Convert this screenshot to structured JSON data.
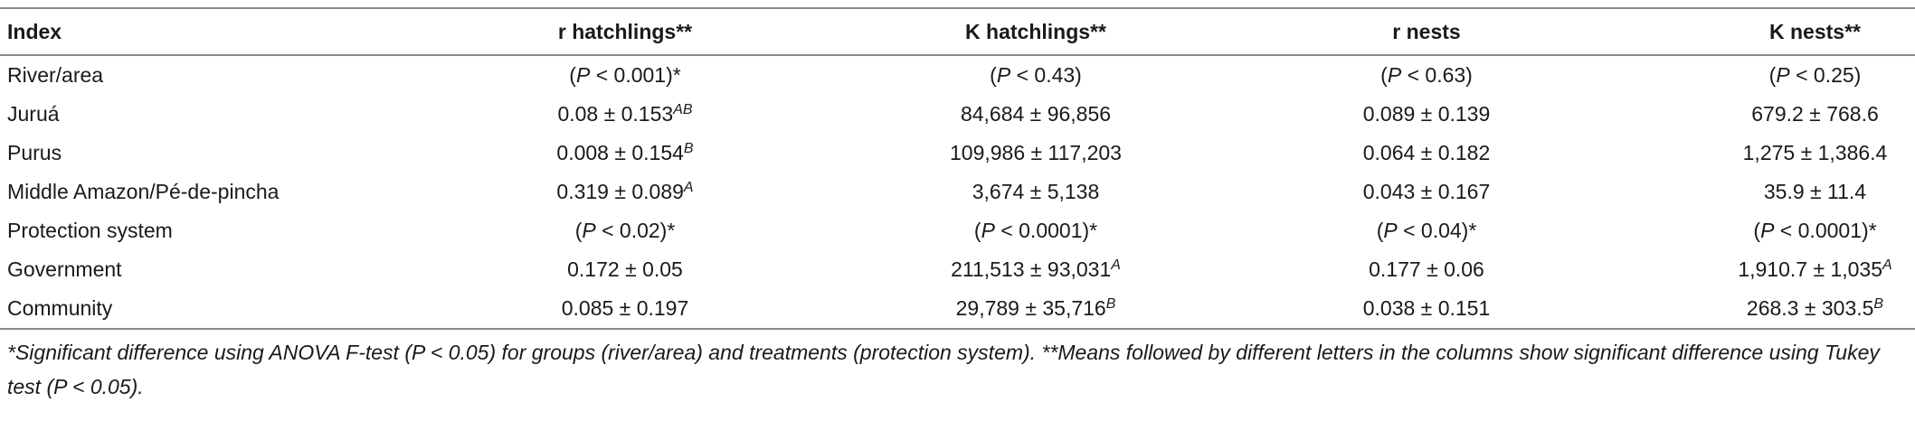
{
  "table": {
    "header": [
      "Index",
      "r hatchlings**",
      "K hatchlings**",
      "r nests",
      "K nests**"
    ],
    "rows": [
      [
        "River/area",
        {
          "open": "(",
          "italic": "P",
          "rest": " < 0.001)*"
        },
        {
          "open": "(",
          "italic": "P",
          "rest": " < 0.43)"
        },
        {
          "open": "(",
          "italic": "P",
          "rest": " < 0.63)"
        },
        {
          "open": "(",
          "italic": "P",
          "rest": " < 0.25)"
        }
      ],
      [
        "Juruá",
        {
          "text": "0.08 ± 0.153",
          "sup": "AB"
        },
        "84,684 ± 96,856",
        "0.089 ± 0.139",
        "679.2 ± 768.6"
      ],
      [
        "Purus",
        {
          "text": "0.008 ± 0.154",
          "sup": "B"
        },
        "109,986 ± 117,203",
        "0.064 ± 0.182",
        "1,275 ± 1,386.4"
      ],
      [
        "Middle Amazon/Pé-de-pincha",
        {
          "text": "0.319 ± 0.089",
          "sup": "A"
        },
        "3,674 ± 5,138",
        "0.043 ± 0.167",
        "35.9 ± 11.4"
      ],
      [
        "Protection system",
        {
          "open": "(",
          "italic": "P",
          "rest": " < 0.02)*"
        },
        {
          "open": "(",
          "italic": "P",
          "rest": " < 0.0001)*"
        },
        {
          "open": "(",
          "italic": "P",
          "rest": " < 0.04)*"
        },
        {
          "open": "(",
          "italic": "P",
          "rest": " < 0.0001)*"
        }
      ],
      [
        "Government",
        "0.172 ± 0.05",
        {
          "text": "211,513 ± 93,031",
          "sup": "A"
        },
        "0.177 ± 0.06",
        {
          "text": "1,910.7 ± 1,035",
          "sup": "A"
        }
      ],
      [
        "Community",
        "0.085 ± 0.197",
        {
          "text": "29,789 ± 35,716",
          "sup": "B"
        },
        "0.038 ± 0.151",
        {
          "text": "268.3 ± 303.5",
          "sup": "B"
        }
      ]
    ],
    "footnote": "*Significant difference using ANOVA F-test (P < 0.05) for groups (river/area) and treatments (protection system). **Means followed by different letters in the columns show significant difference using Tukey test (P < 0.05)."
  }
}
